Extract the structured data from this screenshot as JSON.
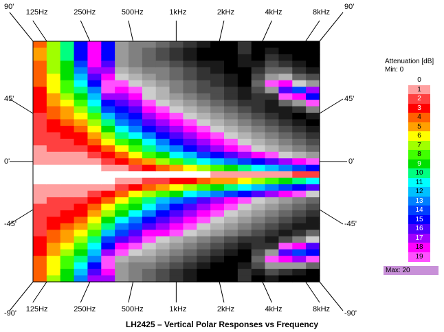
{
  "chart_data": {
    "type": "heatmap",
    "title": "LH2425 – Vertical Polar Responses vs Frequency",
    "x_tick_labels": [
      "125Hz",
      "250Hz",
      "500Hz",
      "1kHz",
      "2kHz",
      "4kHz",
      "8kHz"
    ],
    "x_tick_positions_log2_from_100Hz": [
      0.32,
      1.32,
      2.32,
      3.32,
      4.32,
      5.32,
      6.32
    ],
    "x_range_hz": [
      100,
      10000
    ],
    "angle_labels_left": [
      "90'",
      "45'",
      "0'",
      "-45'",
      "-90'"
    ],
    "angle_labels_right": [
      "90'",
      "45'",
      "0'",
      "-45'",
      "-90'"
    ],
    "y_range_deg": [
      -90,
      90
    ],
    "columns": 21,
    "rows": 37,
    "attenuation_db": [
      [
        4,
        5,
        5,
        4,
        4,
        4,
        4,
        3,
        3,
        3,
        3,
        2,
        2,
        2,
        2,
        2,
        1,
        1,
        1,
        0,
        0,
        0,
        1,
        1,
        1,
        2,
        2,
        2,
        2,
        2,
        3,
        3,
        3,
        4,
        4,
        4,
        4
      ],
      [
        7,
        7,
        7,
        7,
        7,
        6,
        6,
        6,
        5,
        5,
        4,
        4,
        3,
        3,
        2,
        2,
        2,
        1,
        1,
        0,
        0,
        0,
        1,
        1,
        2,
        2,
        2,
        3,
        3,
        4,
        4,
        5,
        5,
        6,
        6,
        6,
        7
      ],
      [
        10,
        10,
        10,
        9,
        9,
        9,
        8,
        8,
        7,
        6,
        5,
        5,
        4,
        3,
        3,
        2,
        2,
        1,
        1,
        0,
        0,
        0,
        1,
        1,
        2,
        2,
        3,
        3,
        4,
        5,
        5,
        6,
        7,
        8,
        8,
        9,
        9
      ],
      [
        15,
        15,
        15,
        14,
        13,
        12,
        11,
        10,
        9,
        8,
        7,
        6,
        5,
        4,
        3,
        3,
        2,
        1,
        1,
        0,
        0,
        0,
        1,
        1,
        2,
        3,
        3,
        4,
        5,
        6,
        7,
        8,
        9,
        10,
        11,
        12,
        13
      ],
      [
        18,
        18,
        18,
        18,
        17,
        16,
        15,
        13,
        12,
        11,
        10,
        8,
        7,
        6,
        5,
        4,
        3,
        2,
        1,
        0,
        0,
        0,
        1,
        2,
        3,
        4,
        5,
        6,
        7,
        8,
        10,
        11,
        12,
        13,
        15,
        16,
        17
      ],
      [
        15,
        15,
        15,
        16,
        17,
        18,
        19,
        19,
        17,
        15,
        14,
        12,
        10,
        9,
        7,
        6,
        4,
        3,
        2,
        1,
        0,
        0,
        1,
        3,
        4,
        6,
        7,
        9,
        10,
        12,
        14,
        15,
        17,
        19,
        19,
        18,
        17
      ],
      [
        22,
        22,
        22,
        22,
        21,
        20,
        19,
        18,
        17,
        16,
        15,
        14,
        13,
        11,
        10,
        8,
        6,
        4,
        3,
        1,
        0,
        1,
        2,
        4,
        6,
        8,
        9,
        11,
        13,
        14,
        16,
        18,
        19,
        21,
        22,
        22,
        22
      ],
      [
        23,
        23,
        23,
        23,
        22,
        21,
        20,
        19,
        18,
        17,
        16,
        15,
        14,
        13,
        11,
        9,
        8,
        6,
        4,
        2,
        0,
        1,
        3,
        6,
        8,
        9,
        11,
        13,
        14,
        16,
        17,
        19,
        20,
        22,
        23,
        23,
        23
      ],
      [
        23,
        24,
        24,
        24,
        23,
        22,
        21,
        20,
        20,
        19,
        18,
        17,
        16,
        15,
        13,
        11,
        10,
        8,
        5,
        3,
        0,
        2,
        4,
        7,
        10,
        11,
        13,
        15,
        16,
        18,
        19,
        20,
        21,
        22,
        23,
        24,
        24
      ],
      [
        24,
        25,
        25,
        24,
        23,
        23,
        22,
        21,
        21,
        20,
        19,
        18,
        17,
        16,
        15,
        13,
        12,
        9,
        7,
        4,
        0,
        2,
        5,
        8,
        12,
        13,
        15,
        16,
        17,
        18,
        20,
        21,
        22,
        23,
        24,
        25,
        25
      ],
      [
        25,
        26,
        26,
        25,
        24,
        24,
        23,
        23,
        22,
        21,
        20,
        19,
        18,
        17,
        16,
        15,
        13,
        11,
        8,
        5,
        0,
        3,
        6,
        9,
        13,
        15,
        16,
        17,
        18,
        19,
        21,
        22,
        23,
        24,
        25,
        26,
        26
      ],
      [
        26,
        27,
        27,
        26,
        25,
        25,
        24,
        24,
        23,
        22,
        21,
        20,
        19,
        18,
        17,
        16,
        15,
        12,
        10,
        6,
        0,
        3,
        7,
        11,
        14,
        16,
        17,
        18,
        19,
        20,
        22,
        23,
        24,
        25,
        26,
        27,
        27
      ],
      [
        27,
        28,
        28,
        27,
        26,
        26,
        25,
        25,
        24,
        23,
        22,
        21,
        20,
        19,
        18,
        17,
        16,
        14,
        11,
        7,
        0,
        4,
        8,
        12,
        16,
        17,
        18,
        19,
        20,
        21,
        23,
        24,
        25,
        26,
        27,
        28,
        28
      ],
      [
        28,
        28,
        28,
        27,
        27,
        26,
        26,
        25,
        25,
        24,
        23,
        22,
        21,
        20,
        19,
        18,
        17,
        15,
        12,
        8,
        1,
        5,
        9,
        13,
        17,
        18,
        19,
        20,
        21,
        22,
        24,
        25,
        26,
        27,
        28,
        28,
        28
      ],
      [
        28,
        28,
        28,
        28,
        28,
        27,
        27,
        26,
        26,
        25,
        24,
        23,
        22,
        21,
        20,
        19,
        18,
        16,
        13,
        9,
        1,
        5,
        10,
        14,
        18,
        19,
        20,
        21,
        22,
        23,
        25,
        26,
        27,
        28,
        28,
        28,
        28
      ],
      [
        26,
        26,
        27,
        27,
        28,
        28,
        28,
        27,
        27,
        26,
        25,
        24,
        23,
        22,
        21,
        20,
        19,
        17,
        14,
        10,
        1,
        6,
        11,
        15,
        19,
        20,
        21,
        22,
        23,
        24,
        26,
        27,
        28,
        28,
        27,
        26,
        26
      ],
      [
        28,
        28,
        28,
        27,
        26,
        25,
        24,
        25,
        26,
        26,
        26,
        25,
        24,
        23,
        22,
        21,
        20,
        18,
        15,
        11,
        1,
        7,
        12,
        16,
        20,
        21,
        22,
        23,
        24,
        25,
        26,
        26,
        25,
        24,
        25,
        27,
        28
      ],
      [
        28,
        27,
        26,
        25,
        24,
        22,
        19,
        22,
        26,
        27,
        27,
        26,
        25,
        24,
        23,
        22,
        21,
        19,
        16,
        12,
        1,
        8,
        13,
        17,
        21,
        22,
        23,
        24,
        25,
        26,
        27,
        26,
        22,
        19,
        22,
        25,
        27
      ],
      [
        28,
        28,
        27,
        26,
        24,
        21,
        18,
        16,
        19,
        24,
        27,
        27,
        26,
        25,
        24,
        23,
        22,
        20,
        17,
        13,
        1,
        9,
        14,
        18,
        22,
        23,
        24,
        25,
        26,
        27,
        25,
        19,
        16,
        18,
        22,
        26,
        28
      ],
      [
        28,
        28,
        28,
        27,
        26,
        24,
        20,
        14,
        18,
        22,
        26,
        28,
        27,
        26,
        25,
        24,
        23,
        21,
        18,
        14,
        2,
        10,
        15,
        19,
        23,
        24,
        25,
        26,
        27,
        26,
        23,
        18,
        14,
        17,
        22,
        27,
        28
      ],
      [
        28,
        28,
        28,
        28,
        27,
        25,
        22,
        17,
        15,
        19,
        23,
        27,
        28,
        27,
        26,
        25,
        24,
        22,
        19,
        15,
        2,
        11,
        16,
        20,
        24,
        25,
        26,
        27,
        27,
        24,
        20,
        16,
        15,
        19,
        24,
        28,
        28
      ]
    ]
  },
  "legend": {
    "title": "Attenuation [dB]",
    "min_label": "Min: 0",
    "max_label": "Max: 20",
    "levels": [
      "0",
      "1",
      "2",
      "3",
      "4",
      "5",
      "6",
      "7",
      "8",
      "9",
      "10",
      "11",
      "12",
      "13",
      "14",
      "15",
      "16",
      "17",
      "18",
      "19"
    ],
    "colors": [
      "#ffffff",
      "#ffa0a0",
      "#ff4040",
      "#ff0000",
      "#ff6000",
      "#ffa000",
      "#ffff00",
      "#a0ff00",
      "#40ff00",
      "#00e000",
      "#00ff80",
      "#00ffff",
      "#00c0ff",
      "#0080ff",
      "#0040ff",
      "#0000ff",
      "#5000ff",
      "#a000ff",
      "#ff00ff",
      "#ff50ff"
    ]
  },
  "colors": {
    "low_gray_start": "#ffffff",
    "deep_attenuation": "#000000",
    "max_swatch": "#c890d8"
  }
}
